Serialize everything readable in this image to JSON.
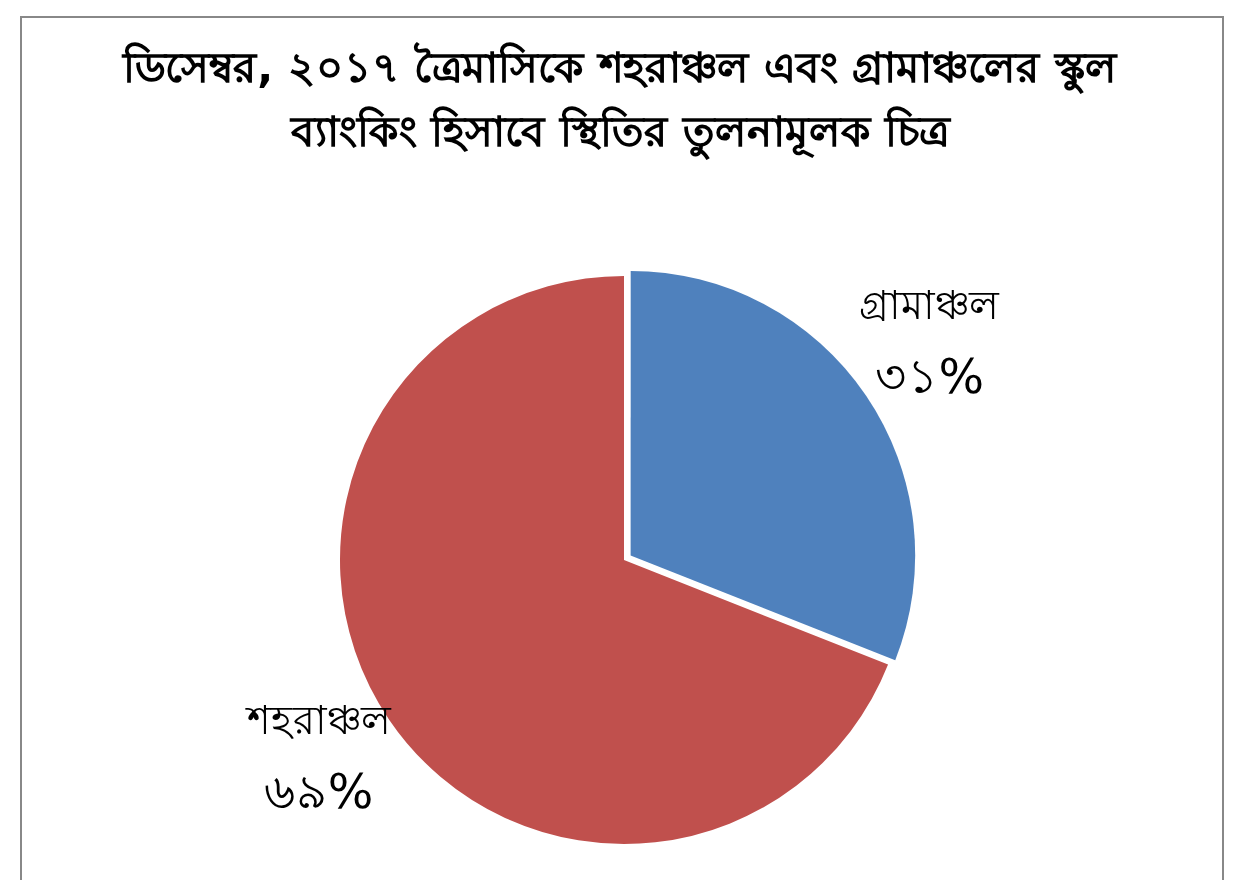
{
  "chart_data": {
    "type": "pie",
    "title": "ডিসেম্বর, ২০১৭ ত্রৈমাসিকে শহরাঞ্চল এবং গ্রামাঞ্চলের স্কুল ব্যাংকিং হিসাবে স্থিতির তুলনামূলক চিত্র",
    "categories": [
      "গ্রামাঞ্চল",
      "শহরাঞ্চল"
    ],
    "values": [
      31,
      69
    ],
    "colors": [
      "#4f81bd",
      "#c0504d"
    ],
    "value_labels": [
      "৩১%",
      "৬৯%"
    ],
    "legend": false
  }
}
